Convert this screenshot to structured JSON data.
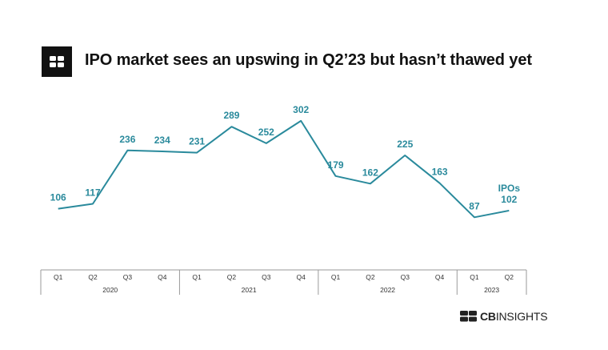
{
  "header": {
    "title": "IPO market sees an upswing in Q2’23 but hasn’t thawed yet",
    "logo_icon": "cb-insights-logo-icon"
  },
  "brand": {
    "bold": "CB",
    "rest": "INSIGHTS",
    "icon": "cb-mark-icon"
  },
  "colors": {
    "line": "#2a8a9c",
    "label": "#2a8a9c",
    "axis": "#333333"
  },
  "chart_data": {
    "type": "line",
    "title": "IPO market sees an upswing in Q2’23 but hasn’t thawed yet",
    "xlabel": "",
    "ylabel": "",
    "categories": [
      "Q1",
      "Q2",
      "Q3",
      "Q4",
      "Q1",
      "Q2",
      "Q3",
      "Q4",
      "Q1",
      "Q2",
      "Q3",
      "Q4",
      "Q1",
      "Q2"
    ],
    "years": [
      {
        "label": "2020",
        "quarters": 4
      },
      {
        "label": "2021",
        "quarters": 4
      },
      {
        "label": "2022",
        "quarters": 4
      },
      {
        "label": "2023",
        "quarters": 2
      }
    ],
    "series": [
      {
        "name": "IPOs",
        "values": [
          106,
          117,
          236,
          234,
          231,
          289,
          252,
          302,
          179,
          162,
          225,
          163,
          87,
          102
        ]
      }
    ],
    "ylim": [
      0,
      320
    ],
    "grid": false
  }
}
